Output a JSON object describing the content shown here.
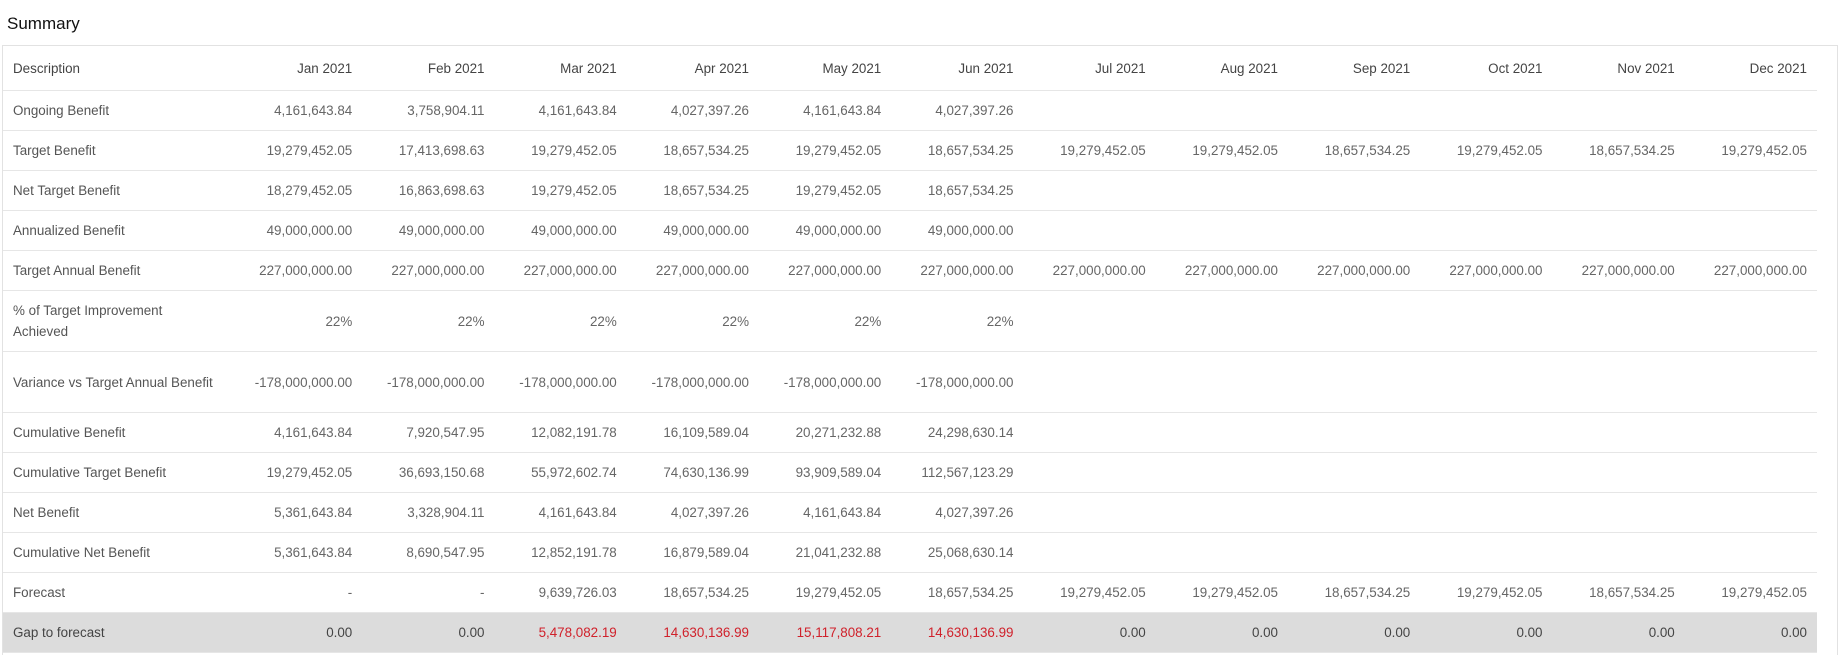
{
  "title": "Summary",
  "columns": [
    "Description",
    "Jan 2021",
    "Feb 2021",
    "Mar 2021",
    "Apr 2021",
    "May 2021",
    "Jun 2021",
    "Jul 2021",
    "Aug 2021",
    "Sep 2021",
    "Oct 2021",
    "Nov 2021",
    "Dec 2021"
  ],
  "rows": [
    {
      "label": "Ongoing Benefit",
      "values": [
        "4,161,643.84",
        "3,758,904.11",
        "4,161,643.84",
        "4,027,397.26",
        "4,161,643.84",
        "4,027,397.26",
        "",
        "",
        "",
        "",
        "",
        ""
      ]
    },
    {
      "label": "Target Benefit",
      "values": [
        "19,279,452.05",
        "17,413,698.63",
        "19,279,452.05",
        "18,657,534.25",
        "19,279,452.05",
        "18,657,534.25",
        "19,279,452.05",
        "19,279,452.05",
        "18,657,534.25",
        "19,279,452.05",
        "18,657,534.25",
        "19,279,452.05"
      ]
    },
    {
      "label": "Net Target Benefit",
      "values": [
        "18,279,452.05",
        "16,863,698.63",
        "19,279,452.05",
        "18,657,534.25",
        "19,279,452.05",
        "18,657,534.25",
        "",
        "",
        "",
        "",
        "",
        ""
      ]
    },
    {
      "label": "Annualized Benefit",
      "values": [
        "49,000,000.00",
        "49,000,000.00",
        "49,000,000.00",
        "49,000,000.00",
        "49,000,000.00",
        "49,000,000.00",
        "",
        "",
        "",
        "",
        "",
        ""
      ]
    },
    {
      "label": "Target Annual Benefit",
      "values": [
        "227,000,000.00",
        "227,000,000.00",
        "227,000,000.00",
        "227,000,000.00",
        "227,000,000.00",
        "227,000,000.00",
        "227,000,000.00",
        "227,000,000.00",
        "227,000,000.00",
        "227,000,000.00",
        "227,000,000.00",
        "227,000,000.00"
      ]
    },
    {
      "label": "% of Target Improvement Achieved",
      "values": [
        "22%",
        "22%",
        "22%",
        "22%",
        "22%",
        "22%",
        "",
        "",
        "",
        "",
        "",
        ""
      ]
    },
    {
      "label": "Variance vs Target Annual Benefit",
      "values": [
        "-178,000,000.00",
        "-178,000,000.00",
        "-178,000,000.00",
        "-178,000,000.00",
        "-178,000,000.00",
        "-178,000,000.00",
        "",
        "",
        "",
        "",
        "",
        ""
      ]
    },
    {
      "label": "Cumulative Benefit",
      "values": [
        "4,161,643.84",
        "7,920,547.95",
        "12,082,191.78",
        "16,109,589.04",
        "20,271,232.88",
        "24,298,630.14",
        "",
        "",
        "",
        "",
        "",
        ""
      ]
    },
    {
      "label": "Cumulative Target Benefit",
      "values": [
        "19,279,452.05",
        "36,693,150.68",
        "55,972,602.74",
        "74,630,136.99",
        "93,909,589.04",
        "112,567,123.29",
        "",
        "",
        "",
        "",
        "",
        ""
      ]
    },
    {
      "label": "Net Benefit",
      "values": [
        "5,361,643.84",
        "3,328,904.11",
        "4,161,643.84",
        "4,027,397.26",
        "4,161,643.84",
        "4,027,397.26",
        "",
        "",
        "",
        "",
        "",
        ""
      ]
    },
    {
      "label": "Cumulative Net Benefit",
      "values": [
        "5,361,643.84",
        "8,690,547.95",
        "12,852,191.78",
        "16,879,589.04",
        "21,041,232.88",
        "25,068,630.14",
        "",
        "",
        "",
        "",
        "",
        ""
      ]
    },
    {
      "label": "Forecast",
      "values": [
        "-",
        "-",
        "9,639,726.03",
        "18,657,534.25",
        "19,279,452.05",
        "18,657,534.25",
        "19,279,452.05",
        "19,279,452.05",
        "18,657,534.25",
        "19,279,452.05",
        "18,657,534.25",
        "19,279,452.05"
      ]
    },
    {
      "label": "Gap to forecast",
      "values": [
        "0.00",
        "0.00",
        "5,478,082.19",
        "14,630,136.99",
        "15,117,808.21",
        "14,630,136.99",
        "0.00",
        "0.00",
        "0.00",
        "0.00",
        "0.00",
        "0.00"
      ]
    }
  ],
  "negative_color": "#d0212b",
  "gap_row_background": "#dcdcdc"
}
